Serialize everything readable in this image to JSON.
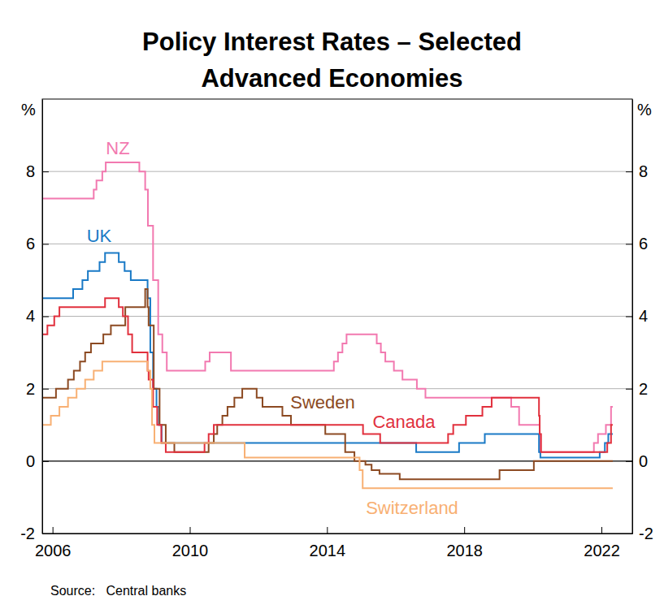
{
  "chart_data": {
    "type": "line",
    "title": "Policy Interest Rates – Selected\nAdvanced Economies",
    "ylabel": "%",
    "source": "Source:   Central banks",
    "xlim": [
      2005.7,
      2022.9
    ],
    "xticks": [
      2006,
      2010,
      2014,
      2018,
      2022
    ],
    "ylim": [
      -2,
      10
    ],
    "yticks": [
      -2,
      0,
      2,
      4,
      6,
      8
    ],
    "grid": true,
    "line_style": "step",
    "series": [
      {
        "name": "NZ",
        "color": "#f279b0",
        "x": [
          2005.7,
          2007.2,
          2007.28,
          2007.45,
          2007.55,
          2008.53,
          2008.7,
          2008.78,
          2008.93,
          2009.08,
          2009.2,
          2009.33,
          2010.45,
          2010.58,
          2011.2,
          2014.2,
          2014.32,
          2014.45,
          2014.57,
          2015.45,
          2015.57,
          2015.7,
          2015.95,
          2016.2,
          2016.62,
          2016.87,
          2019.37,
          2019.6,
          2020.2,
          2021.78,
          2021.9,
          2022.13,
          2022.28,
          2022.33
        ],
        "values": [
          7.25,
          7.5,
          7.75,
          8,
          8.25,
          8,
          7.5,
          6.5,
          5,
          3.5,
          3,
          2.5,
          2.75,
          3,
          2.5,
          2.75,
          3,
          3.25,
          3.5,
          3.25,
          3,
          2.75,
          2.5,
          2.25,
          2,
          1.75,
          1.5,
          1,
          0.25,
          0.5,
          0.75,
          1,
          1.5,
          1.5
        ]
      },
      {
        "name": "UK",
        "color": "#1a7ac6",
        "x": [
          2005.7,
          2006.6,
          2006.87,
          2007.03,
          2007.37,
          2007.53,
          2007.93,
          2008.1,
          2008.28,
          2008.77,
          2008.85,
          2008.93,
          2009.03,
          2009.1,
          2009.18,
          2016.6,
          2017.85,
          2018.6,
          2020.18,
          2020.22,
          2021.95,
          2022.1,
          2022.2,
          2022.33
        ],
        "values": [
          4.5,
          4.75,
          5,
          5.25,
          5.5,
          5.75,
          5.5,
          5.25,
          5,
          4.5,
          3,
          2,
          1.5,
          1,
          0.5,
          0.25,
          0.5,
          0.75,
          0.25,
          0.1,
          0.25,
          0.5,
          0.75,
          0.75
        ]
      },
      {
        "name": "Sweden",
        "color": "#8c4a22",
        "x": [
          2005.7,
          2006.1,
          2006.45,
          2006.62,
          2006.8,
          2006.95,
          2007.12,
          2007.48,
          2007.7,
          2008.12,
          2008.7,
          2008.77,
          2008.8,
          2008.95,
          2009.12,
          2009.3,
          2009.55,
          2010.55,
          2010.7,
          2010.8,
          2010.95,
          2011.1,
          2011.3,
          2011.53,
          2011.95,
          2012.12,
          2012.7,
          2012.95,
          2013.95,
          2014.53,
          2014.8,
          2015.12,
          2015.3,
          2015.53,
          2016.12,
          2019.03,
          2020.03,
          2022.33
        ],
        "values": [
          1.75,
          2,
          2.25,
          2.5,
          2.75,
          3,
          3.25,
          3.5,
          3.75,
          4.25,
          4.75,
          4.25,
          3.75,
          2,
          1,
          0.5,
          0.25,
          0.5,
          0.75,
          1,
          1.25,
          1.5,
          1.75,
          2,
          1.75,
          1.5,
          1.25,
          1,
          0.75,
          0.25,
          0,
          -0.1,
          -0.25,
          -0.35,
          -0.5,
          -0.25,
          0,
          0
        ]
      },
      {
        "name": "Canada",
        "color": "#e1303d",
        "x": [
          2005.7,
          2005.85,
          2006.05,
          2006.2,
          2007.53,
          2007.93,
          2008.05,
          2008.2,
          2008.32,
          2008.77,
          2008.8,
          2008.93,
          2009.05,
          2009.17,
          2009.3,
          2010.43,
          2010.55,
          2010.7,
          2015.05,
          2015.55,
          2017.53,
          2017.68,
          2018.05,
          2018.53,
          2018.8,
          2020.18,
          2020.2,
          2020.24,
          2022.17,
          2022.28,
          2022.33
        ],
        "values": [
          3.5,
          3.75,
          4,
          4.25,
          4.5,
          4.25,
          4,
          3.5,
          3,
          2.5,
          2.25,
          1.5,
          1,
          0.5,
          0.25,
          0.5,
          0.75,
          1,
          0.75,
          0.5,
          0.75,
          1,
          1.25,
          1.5,
          1.75,
          1.25,
          0.75,
          0.25,
          0.5,
          1,
          1
        ]
      },
      {
        "name": "Switzerland",
        "color": "#f8b073",
        "x": [
          2005.7,
          2005.95,
          2006.2,
          2006.45,
          2006.7,
          2006.95,
          2007.2,
          2007.45,
          2008.77,
          2008.85,
          2008.9,
          2008.97,
          2011.6,
          2014.95,
          2015.04,
          2022.33
        ],
        "values": [
          1,
          1.25,
          1.5,
          1.75,
          2,
          2.25,
          2.5,
          2.75,
          2.5,
          2,
          1,
          0.5,
          0.1,
          -0.25,
          -0.75,
          -0.75
        ]
      }
    ]
  }
}
